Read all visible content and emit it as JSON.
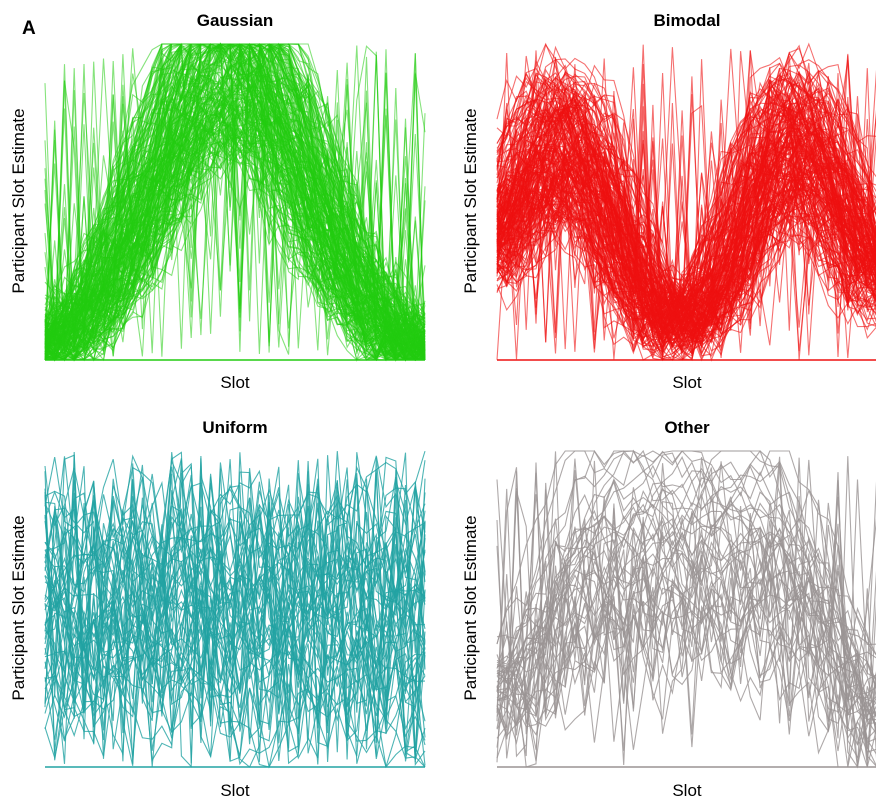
{
  "figure": {
    "panel_letter": "A"
  },
  "colors": {
    "Gaussian": "#22cc11",
    "Bimodal": "#ee1111",
    "Uniform": "#22a3a3",
    "Other": "#9a9494"
  },
  "chart_data": [
    {
      "type": "line",
      "title": "Gaussian",
      "xlabel": "Slot",
      "ylabel": "Participant Slot Estimate",
      "grid": false,
      "legend": "none",
      "series_count": 220,
      "x": [
        0,
        1,
        2,
        3,
        4,
        5,
        6,
        7,
        8,
        9,
        10,
        11,
        12,
        13,
        14,
        15,
        16,
        17,
        18,
        19,
        20,
        21,
        22,
        23,
        24,
        25,
        26,
        27,
        28,
        29,
        30,
        31,
        32,
        33,
        34,
        35,
        36,
        37,
        38,
        39
      ],
      "mean_profile": [
        0.04,
        0.05,
        0.07,
        0.1,
        0.13,
        0.17,
        0.22,
        0.28,
        0.34,
        0.41,
        0.48,
        0.55,
        0.63,
        0.7,
        0.77,
        0.83,
        0.88,
        0.92,
        0.95,
        0.96,
        0.96,
        0.94,
        0.9,
        0.85,
        0.79,
        0.72,
        0.65,
        0.57,
        0.49,
        0.42,
        0.35,
        0.29,
        0.23,
        0.18,
        0.14,
        0.1,
        0.07,
        0.05,
        0.04,
        0.03
      ]
    },
    {
      "type": "line",
      "title": "Bimodal",
      "xlabel": "Slot",
      "ylabel": "Participant Slot Estimate",
      "grid": false,
      "legend": "none",
      "series_count": 200,
      "x": [
        0,
        1,
        2,
        3,
        4,
        5,
        6,
        7,
        8,
        9,
        10,
        11,
        12,
        13,
        14,
        15,
        16,
        17,
        18,
        19,
        20,
        21,
        22,
        23,
        24,
        25,
        26,
        27,
        28,
        29,
        30,
        31,
        32,
        33,
        34,
        35,
        36,
        37,
        38,
        39
      ],
      "mean_profile": [
        0.38,
        0.45,
        0.52,
        0.58,
        0.63,
        0.67,
        0.69,
        0.69,
        0.67,
        0.63,
        0.57,
        0.5,
        0.42,
        0.34,
        0.27,
        0.21,
        0.16,
        0.13,
        0.12,
        0.12,
        0.13,
        0.16,
        0.21,
        0.27,
        0.34,
        0.42,
        0.5,
        0.57,
        0.63,
        0.67,
        0.69,
        0.69,
        0.67,
        0.63,
        0.58,
        0.52,
        0.45,
        0.38,
        0.32,
        0.27
      ]
    },
    {
      "type": "line",
      "title": "Uniform",
      "xlabel": "Slot",
      "ylabel": "Participant Slot Estimate",
      "grid": false,
      "legend": "none",
      "series_count": 55,
      "x": [
        0,
        1,
        2,
        3,
        4,
        5,
        6,
        7,
        8,
        9,
        10,
        11,
        12,
        13,
        14,
        15,
        16,
        17,
        18,
        19,
        20,
        21,
        22,
        23,
        24,
        25,
        26,
        27,
        28,
        29,
        30,
        31,
        32,
        33,
        34,
        35,
        36,
        37,
        38,
        39
      ],
      "mean_profile": [
        0.5,
        0.5,
        0.5,
        0.5,
        0.5,
        0.5,
        0.5,
        0.5,
        0.5,
        0.5,
        0.5,
        0.5,
        0.5,
        0.5,
        0.5,
        0.5,
        0.5,
        0.5,
        0.5,
        0.5,
        0.5,
        0.5,
        0.5,
        0.5,
        0.5,
        0.5,
        0.5,
        0.5,
        0.5,
        0.5,
        0.5,
        0.5,
        0.5,
        0.5,
        0.5,
        0.5,
        0.5,
        0.5,
        0.5,
        0.5
      ]
    },
    {
      "type": "line",
      "title": "Other",
      "xlabel": "Slot",
      "ylabel": "Participant Slot Estimate",
      "grid": false,
      "legend": "none",
      "series_count": 45,
      "x": [
        0,
        1,
        2,
        3,
        4,
        5,
        6,
        7,
        8,
        9,
        10,
        11,
        12,
        13,
        14,
        15,
        16,
        17,
        18,
        19,
        20,
        21,
        22,
        23,
        24,
        25,
        26,
        27,
        28,
        29,
        30,
        31,
        32,
        33,
        34,
        35,
        36,
        37,
        38,
        39
      ],
      "mean_profile": [
        0.15,
        0.17,
        0.2,
        0.23,
        0.27,
        0.31,
        0.35,
        0.39,
        0.42,
        0.45,
        0.47,
        0.48,
        0.49,
        0.5,
        0.5,
        0.5,
        0.5,
        0.5,
        0.5,
        0.5,
        0.5,
        0.5,
        0.5,
        0.5,
        0.5,
        0.5,
        0.5,
        0.5,
        0.49,
        0.48,
        0.46,
        0.43,
        0.39,
        0.35,
        0.3,
        0.25,
        0.21,
        0.17,
        0.14,
        0.12
      ]
    }
  ]
}
